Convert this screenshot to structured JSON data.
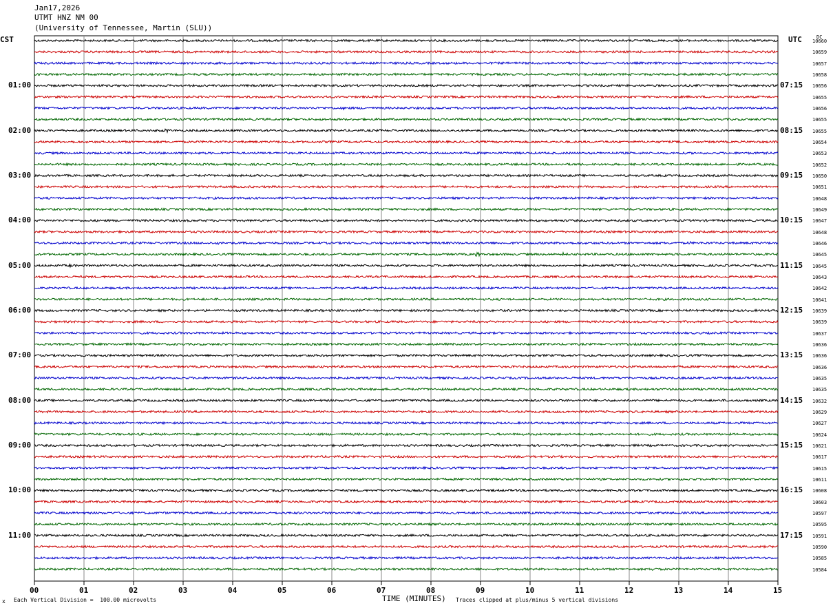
{
  "header": {
    "date": "Jan17,2026",
    "station": "UTMT HNZ NM 00",
    "institution": "(University of Tennessee, Martin (SLU))"
  },
  "left_axis_label": "CST",
  "right_axis_label": "UTC",
  "dc_label": "DC",
  "footer": {
    "scale": "Each Vertical Division =  100.00 microvolts",
    "xlabel": "TIME (MINUTES)",
    "clip": "Traces clipped at plus/minus 5 vertical divisions",
    "corner_mark": "x"
  },
  "colors": {
    "cycle": [
      "#000000",
      "#cc0000",
      "#0000cc",
      "#006600"
    ],
    "grid": "#888888"
  },
  "chart_data": {
    "type": "line",
    "x_ticks": [
      "00",
      "01",
      "02",
      "03",
      "04",
      "05",
      "06",
      "07",
      "08",
      "09",
      "10",
      "11",
      "12",
      "13",
      "14",
      "15"
    ],
    "xlim": [
      0,
      15
    ],
    "left_hour_labels": [
      "01:00",
      "02:00",
      "03:00",
      "04:00",
      "05:00",
      "06:00",
      "07:00",
      "08:00",
      "09:00",
      "10:00",
      "11:00"
    ],
    "right_hour_labels": [
      "07:15",
      "08:15",
      "09:15",
      "10:15",
      "11:15",
      "12:15",
      "13:15",
      "14:15",
      "15:15",
      "16:15",
      "17:15"
    ],
    "dc_values": [
      "10660",
      "10659",
      "10657",
      "10658",
      "10656",
      "10655",
      "10656",
      "10655",
      "10655",
      "10654",
      "10653",
      "10652",
      "10650",
      "10651",
      "10648",
      "10649",
      "10647",
      "10648",
      "10646",
      "10645",
      "10645",
      "10643",
      "10642",
      "10641",
      "10639",
      "10639",
      "10637",
      "10636",
      "10636",
      "10636",
      "10635",
      "10635",
      "10632",
      "10629",
      "10627",
      "10624",
      "10621",
      "10617",
      "10615",
      "10611",
      "10608",
      "10603",
      "10597",
      "10595",
      "10591",
      "10590",
      "10585",
      "10584"
    ],
    "events": [
      {
        "trace": 6,
        "minute": 6.2,
        "amp": 1.5
      },
      {
        "trace": 8,
        "minute": 2.65,
        "amp": 2.5
      },
      {
        "trace": 18,
        "minute": 3.7,
        "amp": 1.2
      },
      {
        "trace": 18,
        "minute": 13.2,
        "amp": 2.0
      },
      {
        "trace": 19,
        "minute": 4.3,
        "amp": 1.5
      },
      {
        "trace": 19,
        "minute": 8.95,
        "amp": 3.5
      },
      {
        "trace": 19,
        "minute": 10.65,
        "amp": 3.0
      },
      {
        "trace": 20,
        "minute": 0.7,
        "amp": 1.5
      },
      {
        "trace": 21,
        "minute": 12.2,
        "amp": 1.2
      },
      {
        "trace": 47,
        "minute": 12.5,
        "amp": 2.5
      },
      {
        "trace": 47,
        "minute": 13.9,
        "amp": 2.0
      }
    ]
  }
}
